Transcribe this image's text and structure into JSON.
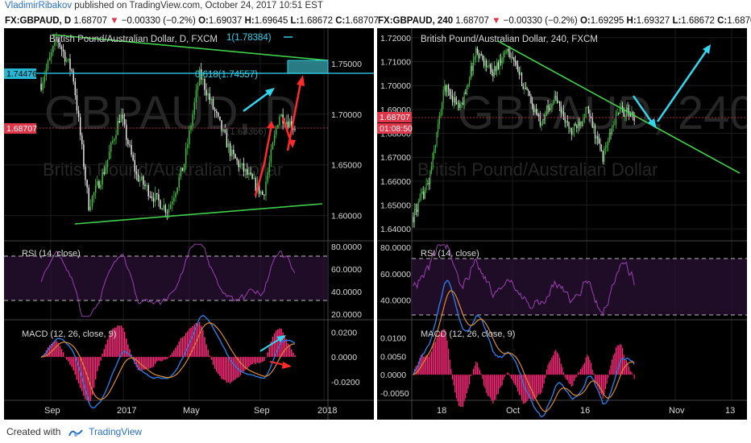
{
  "header": {
    "author": "VladimirRibakov",
    "published": " published on TradingView.com, October 24, 2017 10:51 EST"
  },
  "left": {
    "title": {
      "symbol": "FX:GBPAUD, D",
      "price": "1.68707",
      "change": "−0.00330 (−0.2%)",
      "o": "1.69037",
      "h": "1.69645",
      "l": "1.68672",
      "c": "1.68707"
    },
    "legend": "British Pound/Australian Dollar, D, FXCM",
    "watermark_big": "GBPAUD, D",
    "watermark_small": "British Pound/Australian Dollar",
    "fib_labels": [
      "1(1.78384)",
      "0.618(1.74557)",
      "0(1.68366)"
    ],
    "price_labels": [
      {
        "text": "1.74476",
        "value": 1.74476,
        "color": "#27b6d1"
      },
      {
        "text": "1.68707",
        "value": 1.68707,
        "color": "#e0364a"
      }
    ],
    "rsi_label": "RSI (14, close)",
    "macd_label": "MACD (12, 26, close, 9)",
    "x_ticks": [
      "Sep",
      "2017",
      "May",
      "Sep",
      "2018"
    ]
  },
  "right": {
    "title": {
      "symbol": "FX:GBPAUD, 240",
      "price": "1.68707",
      "change": "−0.00330 (−0.2%)",
      "o": "1.69295",
      "h": "1.69327",
      "l": "1.68672",
      "c": "1.68707"
    },
    "legend": "British Pound/Australian Dollar, 240, FXCM",
    "watermark_big": "GBPAUD, 240",
    "watermark_small": "British Pound/Australian Dollar",
    "price_labels": [
      {
        "text": "1.68707",
        "value": 1.68707,
        "color": "#e0364a"
      },
      {
        "text": "01:08:50",
        "value": 1.6842,
        "color": "#e0364a"
      }
    ],
    "rsi_label": "RSI (14, close)",
    "macd_label": "MACD (12, 26, close, 9)",
    "x_ticks": [
      "18",
      "Oct",
      "16",
      "Nov",
      "13"
    ]
  },
  "footer": {
    "created": "Created with",
    "brand": "TradingView"
  },
  "colors": {
    "up": "#3fbf3f",
    "down": "#e8e8e8",
    "trend": "#3fd04a",
    "cyan": "#2fd6ee",
    "red": "#ff2a2a",
    "rsi": "#9b3fb0",
    "macd": "#2a7be0",
    "signal": "#e08a2a",
    "hist": "#ff2b7a"
  },
  "chart_data": [
    {
      "type": "candlestick",
      "title": "British Pound/Australian Dollar, D, FXCM",
      "x_ticks": [
        "Sep",
        "2017",
        "May",
        "Sep",
        "2018"
      ],
      "y_ticks": [
        1.6,
        1.65,
        1.7,
        1.75
      ],
      "ylim": [
        1.575,
        1.785
      ],
      "price_path": [
        [
          "Aug 2016",
          1.73
        ],
        [
          "Aug 2016",
          1.775
        ],
        [
          "Sep 2016",
          1.74
        ],
        [
          "Oct 2016",
          1.61
        ],
        [
          "Nov 2016",
          1.645
        ],
        [
          "Dec 2016",
          1.7
        ],
        [
          "Jan 2017",
          1.64
        ],
        [
          "Feb 2017",
          1.62
        ],
        [
          "Mar 2017",
          1.605
        ],
        [
          "Apr 2017",
          1.65
        ],
        [
          "May 2017",
          1.74
        ],
        [
          "Jun 2017",
          1.7
        ],
        [
          "Jul 2017",
          1.66
        ],
        [
          "Aug 2017",
          1.64
        ],
        [
          "Sep 2017",
          1.62
        ],
        [
          "Sep 2017",
          1.7
        ],
        [
          "Oct 2017",
          1.687
        ]
      ],
      "last": 1.68707,
      "rsi": {
        "label": "RSI (14, close)",
        "y_ticks": [
          20,
          40,
          60,
          80
        ],
        "ylim": [
          15,
          85
        ],
        "bands": [
          30,
          70
        ]
      },
      "macd": {
        "label": "MACD (12, 26, close, 9)",
        "y_ticks": [
          -0.02,
          0.0,
          0.02
        ],
        "ylim": [
          -0.035,
          0.03
        ]
      }
    },
    {
      "type": "candlestick",
      "title": "British Pound/Australian Dollar, 240, FXCM",
      "x_ticks": [
        "18",
        "Oct",
        "16",
        "Nov",
        "13"
      ],
      "y_ticks": [
        1.64,
        1.65,
        1.66,
        1.67,
        1.68,
        1.69,
        1.7,
        1.71,
        1.72
      ],
      "ylim": [
        1.635,
        1.724
      ],
      "price_path": [
        [
          "Sep 14",
          1.645
        ],
        [
          "Sep 15",
          1.66
        ],
        [
          "Sep 18",
          1.7
        ],
        [
          "Sep 20",
          1.69
        ],
        [
          "Sep 22",
          1.715
        ],
        [
          "Sep 26",
          1.705
        ],
        [
          "Sep 29",
          1.716
        ],
        [
          "Oct 3",
          1.7
        ],
        [
          "Oct 6",
          1.685
        ],
        [
          "Oct 10",
          1.695
        ],
        [
          "Oct 13",
          1.68
        ],
        [
          "Oct 17",
          1.69
        ],
        [
          "Oct 19",
          1.67
        ],
        [
          "Oct 22",
          1.69
        ],
        [
          "Oct 24",
          1.687
        ]
      ],
      "last": 1.68707,
      "rsi": {
        "label": "RSI (14, close)",
        "y_ticks": [
          40,
          60,
          80
        ],
        "ylim": [
          25,
          85
        ],
        "bands": [
          30,
          70
        ]
      },
      "macd": {
        "label": "MACD (12, 26, close, 9)",
        "y_ticks": [
          -0.005,
          0.0,
          0.005,
          0.01
        ],
        "ylim": [
          -0.007,
          0.015
        ]
      }
    }
  ]
}
